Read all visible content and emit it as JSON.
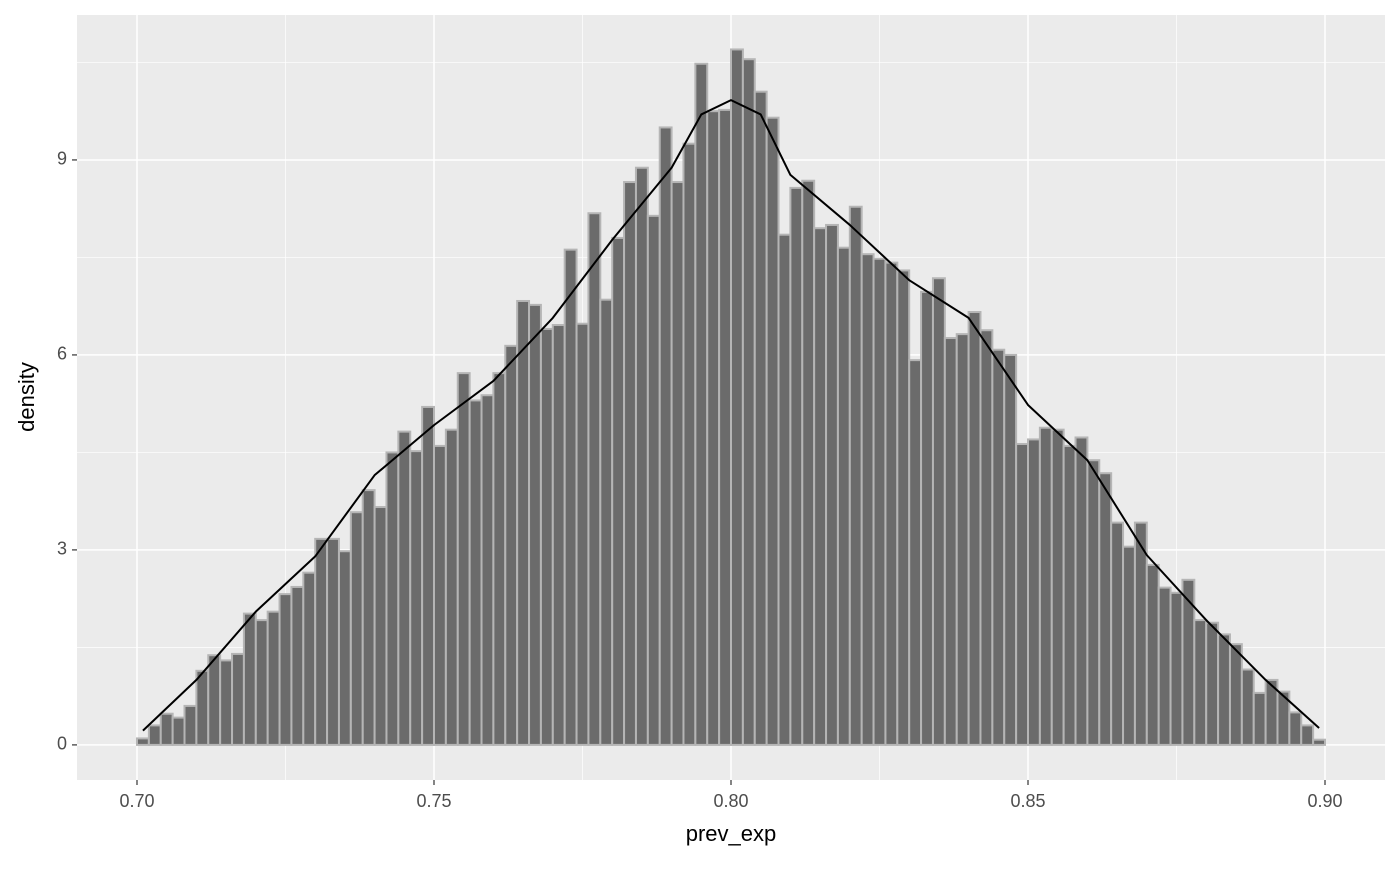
{
  "chart_data": {
    "type": "histogram",
    "x_label": "prev_exp",
    "y_label": "density",
    "bins": [
      0.7,
      0.702,
      0.704,
      0.706,
      0.708,
      0.71,
      0.712,
      0.714,
      0.716,
      0.718,
      0.72,
      0.722,
      0.724,
      0.726,
      0.728,
      0.73,
      0.732,
      0.734,
      0.736,
      0.738,
      0.74,
      0.742,
      0.744,
      0.746,
      0.748,
      0.75,
      0.752,
      0.754,
      0.756,
      0.758,
      0.76,
      0.762,
      0.764,
      0.766,
      0.768,
      0.77,
      0.772,
      0.774,
      0.776,
      0.778,
      0.78,
      0.782,
      0.784,
      0.786,
      0.788,
      0.79,
      0.792,
      0.794,
      0.796,
      0.798,
      0.8,
      0.802,
      0.804,
      0.806,
      0.808,
      0.81,
      0.812,
      0.814,
      0.816,
      0.818,
      0.82,
      0.822,
      0.824,
      0.826,
      0.828,
      0.83,
      0.832,
      0.834,
      0.836,
      0.838,
      0.84,
      0.842,
      0.844,
      0.846,
      0.848,
      0.85,
      0.852,
      0.854,
      0.856,
      0.858,
      0.86,
      0.862,
      0.864,
      0.866,
      0.868,
      0.87,
      0.872,
      0.874,
      0.876,
      0.878,
      0.88,
      0.882,
      0.884,
      0.886,
      0.888,
      0.89,
      0.892,
      0.894,
      0.896,
      0.898,
      0.9
    ],
    "values": [
      0.1,
      0.3,
      0.48,
      0.42,
      0.6,
      1.14,
      1.38,
      1.3,
      1.4,
      2.02,
      1.92,
      2.05,
      2.32,
      2.43,
      2.65,
      3.17,
      3.17,
      2.98,
      3.58,
      3.92,
      3.66,
      4.5,
      4.82,
      4.52,
      5.2,
      4.6,
      4.85,
      5.72,
      5.3,
      5.38,
      5.72,
      6.14,
      6.83,
      6.77,
      6.4,
      6.46,
      7.62,
      6.48,
      8.18,
      6.85,
      7.8,
      8.66,
      8.88,
      8.14,
      9.5,
      8.66,
      9.25,
      10.48,
      9.75,
      9.77,
      10.7,
      10.55,
      10.05,
      9.65,
      7.85,
      8.57,
      8.68,
      7.95,
      8.0,
      7.65,
      8.28,
      7.55,
      7.48,
      7.42,
      7.3,
      5.92,
      6.97,
      7.18,
      6.26,
      6.32,
      6.66,
      6.38,
      6.08,
      6.0,
      4.63,
      4.7,
      4.88,
      4.85,
      4.6,
      4.73,
      4.38,
      4.18,
      3.42,
      3.05,
      3.42,
      2.77,
      2.42,
      2.34,
      2.54,
      1.92,
      1.88,
      1.7,
      1.55,
      1.16,
      0.8,
      1.0,
      0.82,
      0.5,
      0.3,
      0.08
    ],
    "color": "#6b6b6b",
    "edge_color": "#b5b5b5",
    "density": {
      "x": [
        0.701,
        0.71,
        0.72,
        0.73,
        0.74,
        0.75,
        0.76,
        0.77,
        0.78,
        0.79,
        0.795,
        0.8,
        0.805,
        0.81,
        0.82,
        0.83,
        0.84,
        0.85,
        0.86,
        0.87,
        0.88,
        0.89,
        0.899
      ],
      "values": [
        0.22,
        1.0,
        2.05,
        2.9,
        4.15,
        4.92,
        5.6,
        6.57,
        7.77,
        8.88,
        9.7,
        9.92,
        9.7,
        8.77,
        8.0,
        7.15,
        6.57,
        5.23,
        4.38,
        2.92,
        1.92,
        1.0,
        0.26
      ],
      "color": "#000000"
    },
    "xlim": [
      0.6899,
      0.9101
    ],
    "ylim": [
      -0.54,
      11.23
    ],
    "xticks": [
      {
        "value": 0.7,
        "label": "0.70"
      },
      0.75,
      {
        "value": 0.8,
        "label": "0.80"
      },
      0.85,
      {
        "value": 0.9,
        "label": "0.90"
      }
    ],
    "yticks": [
      0,
      3,
      6,
      9
    ],
    "grid": true
  }
}
